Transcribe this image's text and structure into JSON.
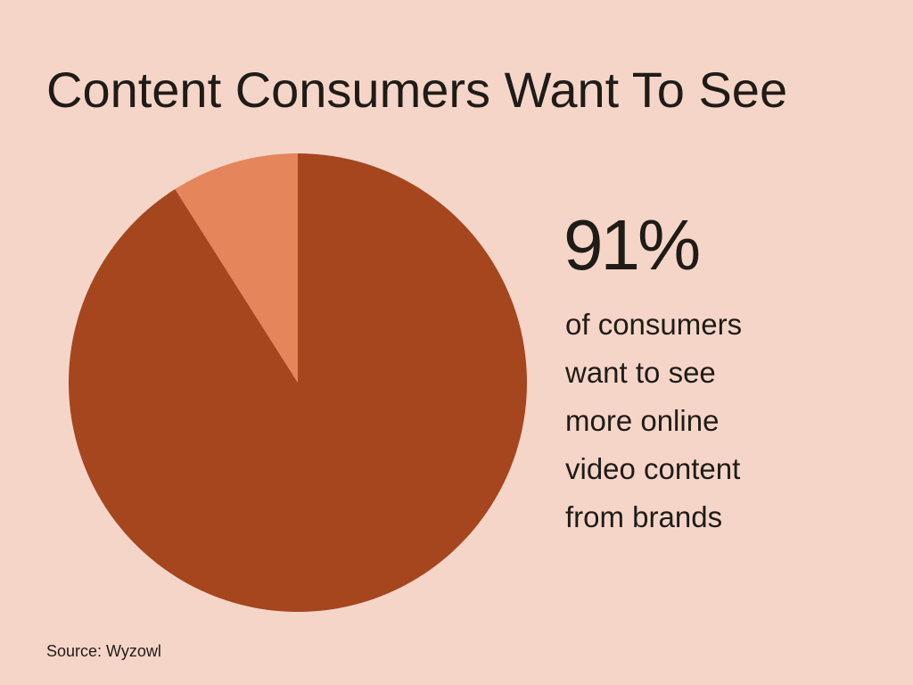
{
  "chart_data": {
    "type": "pie",
    "title": "Content Consumers Want To See",
    "values": [
      91,
      9
    ],
    "value_labels": [
      "91%",
      null
    ],
    "colors": [
      "#a5461e",
      "#e5855c"
    ],
    "annotation": [
      "of consumers",
      "want to see",
      "more online",
      "video content",
      "from brands"
    ],
    "source": "Source: Wyzowl"
  }
}
